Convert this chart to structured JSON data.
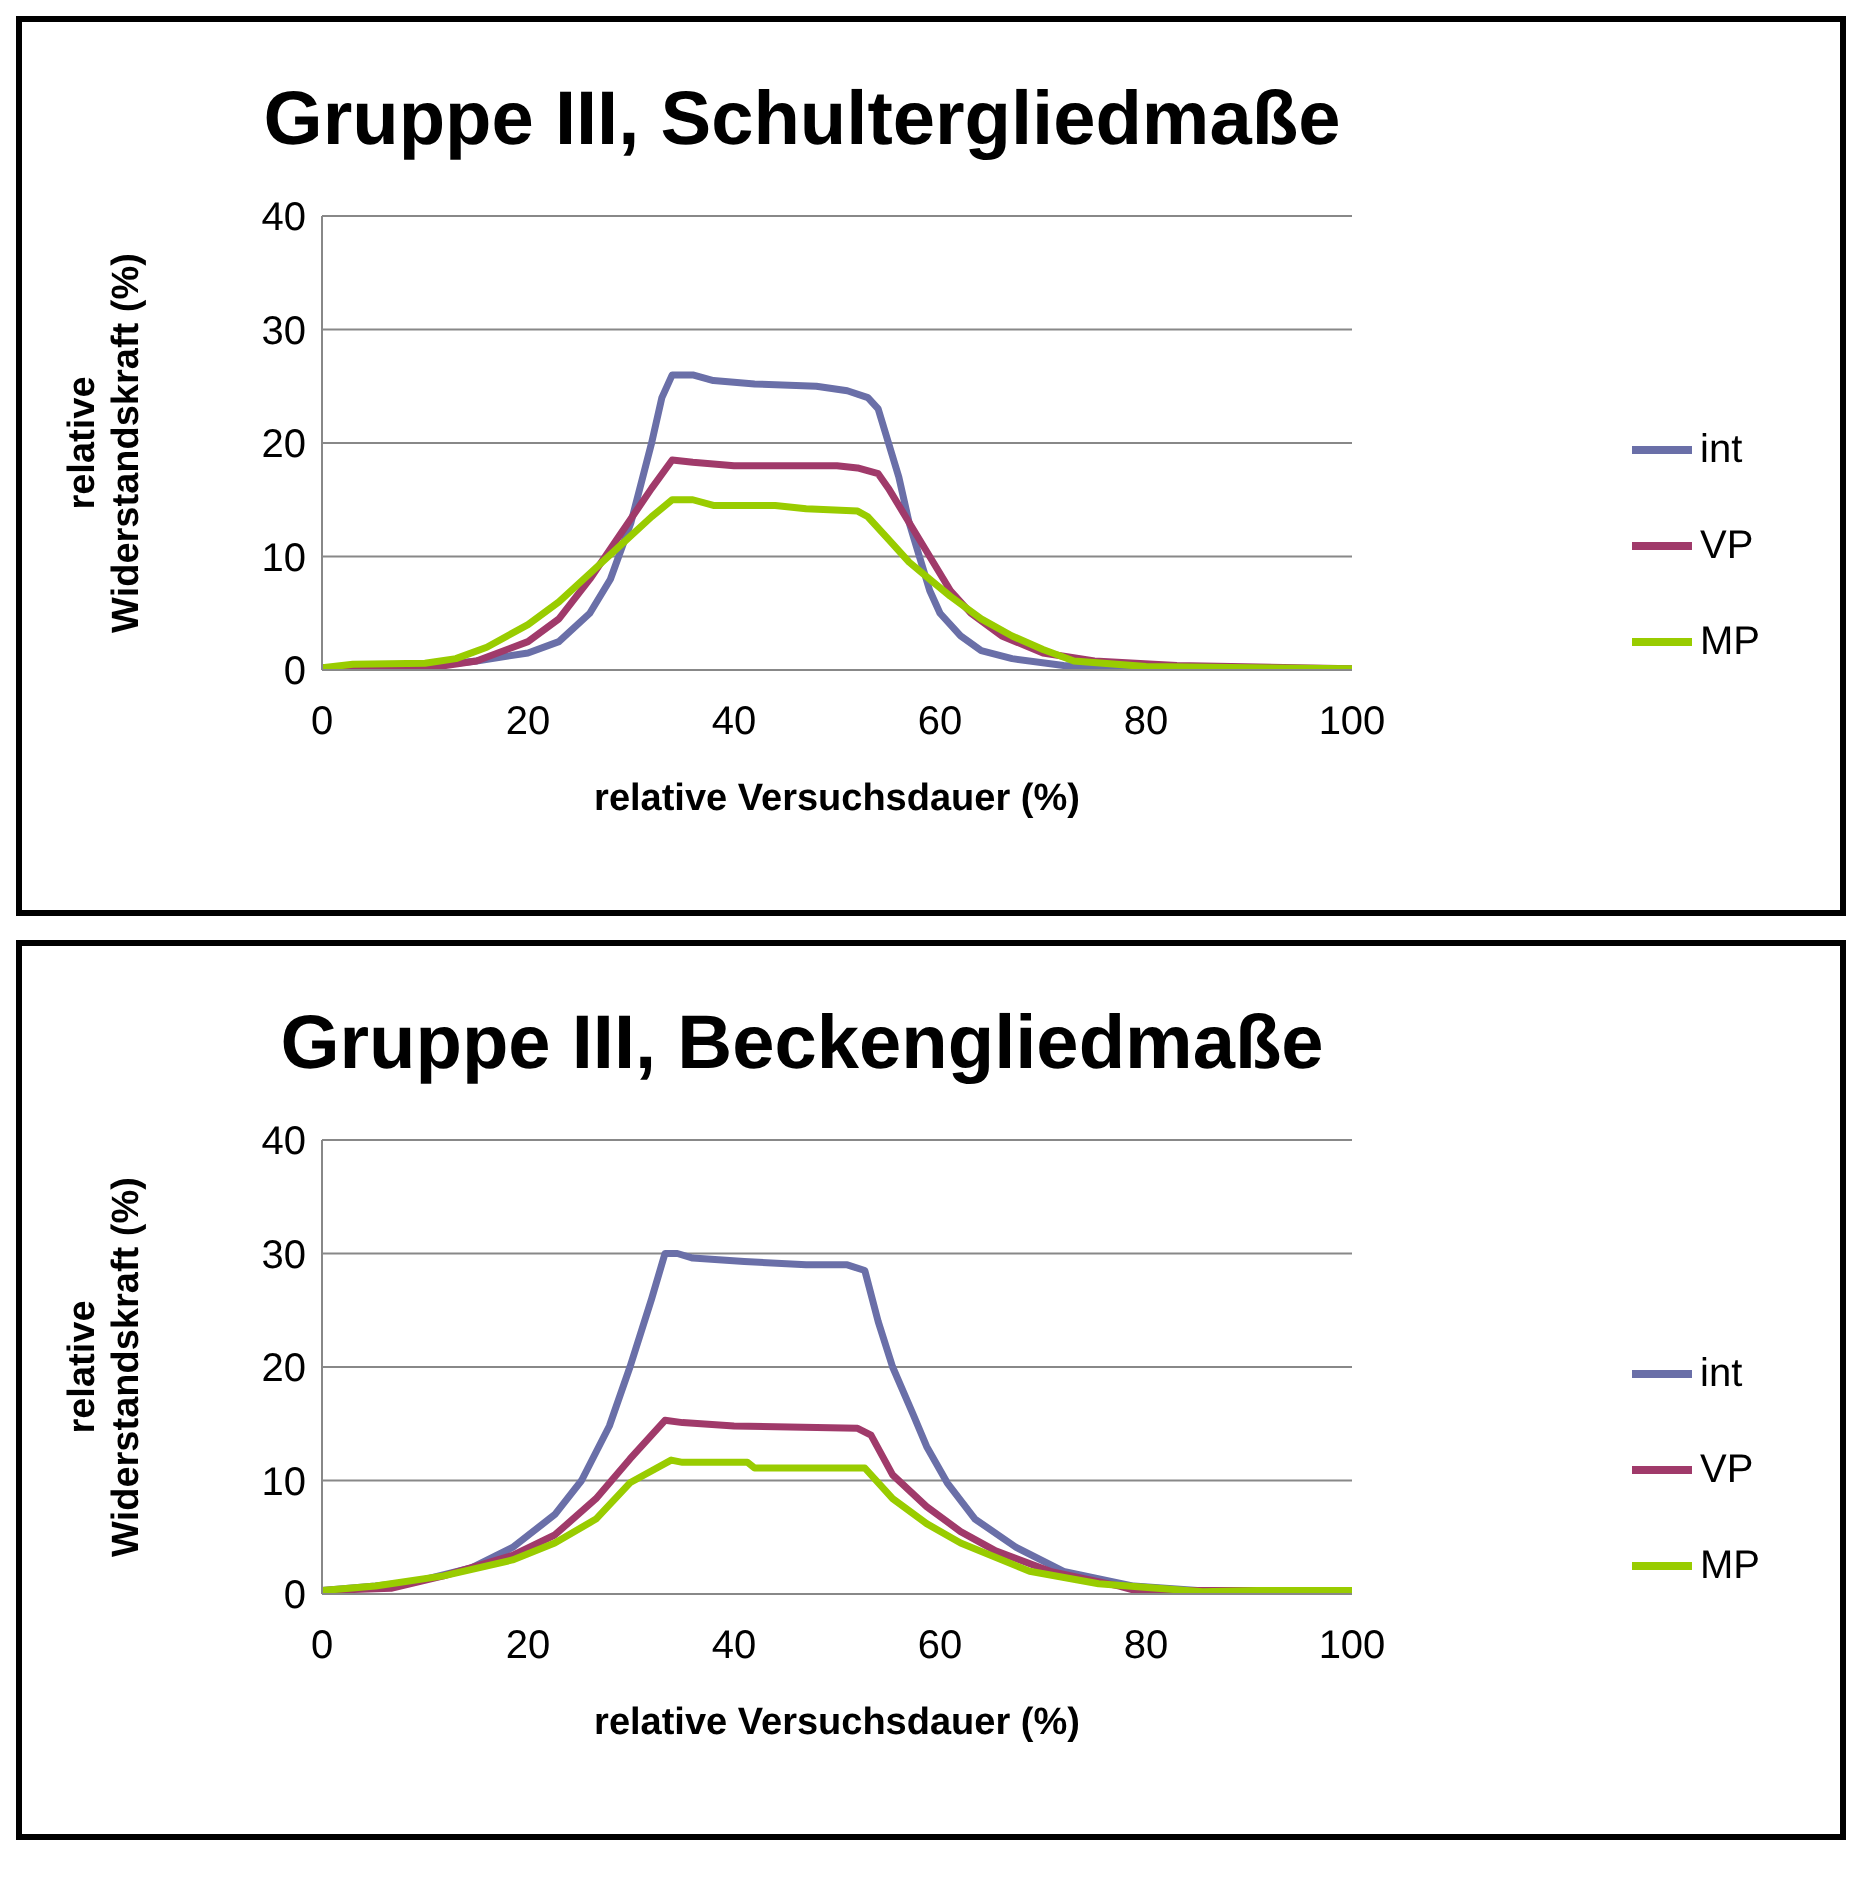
{
  "chart_data": [
    {
      "type": "line",
      "title": "Gruppe III, Schultergliedmaße",
      "xlabel": "relative Versuchsdauer (%)",
      "ylabel": "relative Widerstandskraft (%)",
      "xlim": [
        0,
        100
      ],
      "xticks": [
        0,
        20,
        40,
        60,
        80,
        100
      ],
      "ylim": [
        0,
        40
      ],
      "yticks": [
        0,
        10,
        20,
        30,
        40
      ],
      "grid": "y",
      "legend": "right",
      "marker": "none",
      "series": [
        {
          "name": "int",
          "color": "#6a6fa8",
          "x": [
            0,
            10,
            15,
            20,
            23,
            26,
            28,
            30,
            32,
            33,
            34,
            36,
            38,
            42,
            48,
            51,
            53,
            54,
            55,
            56,
            57,
            58,
            59,
            60,
            62,
            64,
            67,
            72,
            80,
            100
          ],
          "values": [
            0.2,
            0.3,
            0.8,
            1.5,
            2.5,
            5,
            8,
            13,
            20,
            24,
            26,
            26,
            25.5,
            25.2,
            25,
            24.6,
            24,
            23,
            20,
            17,
            13,
            10,
            7,
            5,
            3,
            1.7,
            1,
            0.4,
            0.2,
            0
          ]
        },
        {
          "name": "VP",
          "color": "#a03a6a",
          "x": [
            0,
            10,
            12,
            15,
            20,
            23,
            26,
            29,
            32,
            34,
            36,
            40,
            50,
            52,
            54,
            55,
            57,
            59,
            61,
            63,
            66,
            70,
            75,
            83,
            100
          ],
          "values": [
            0.2,
            0.2,
            0.4,
            0.8,
            2.5,
            4.5,
            8,
            12,
            16,
            18.5,
            18.3,
            18,
            18,
            17.8,
            17.3,
            16,
            13,
            10,
            7,
            5,
            3,
            1.5,
            0.8,
            0.4,
            0.1
          ]
        },
        {
          "name": "MP",
          "color": "#99cc00",
          "x": [
            0,
            3,
            10,
            13,
            16,
            20,
            23,
            26,
            29,
            32,
            34,
            36,
            38,
            44,
            47,
            52,
            53,
            55,
            57,
            59,
            61,
            64,
            67,
            70,
            73,
            80,
            100
          ],
          "values": [
            0.2,
            0.5,
            0.6,
            1,
            2,
            4,
            6,
            8.5,
            11,
            13.5,
            15,
            15,
            14.5,
            14.5,
            14.2,
            14,
            13.5,
            11.5,
            9.5,
            8,
            6.5,
            4.5,
            3,
            1.8,
            0.8,
            0.3,
            0.1
          ]
        }
      ]
    },
    {
      "type": "line",
      "title": "Gruppe III, Beckengliedmaße",
      "xlabel": "relative Versuchsdauer (%)",
      "ylabel": "relative Widerstandskraft (%)",
      "xlim": [
        0,
        100
      ],
      "xticks": [
        0,
        20,
        40,
        60,
        80,
        100
      ],
      "ylim": [
        0,
        40
      ],
      "yticks": [
        0,
        10,
        20,
        30,
        40
      ],
      "grid": "y",
      "legend": "right",
      "marker": "none",
      "series": [
        {
          "name": "int",
          "color": "#6a6fa8",
          "x": [
            0,
            5.2,
            9.2,
            14.5,
            18.5,
            22.6,
            25.2,
            27.9,
            29.9,
            32,
            33.3,
            34.5,
            36,
            41,
            47,
            51,
            52.7,
            54,
            55.4,
            57.4,
            58.7,
            60.7,
            63.4,
            67.4,
            72,
            78.8,
            85,
            100
          ],
          "values": [
            0.3,
            0.7,
            1.1,
            2.3,
            4.1,
            7,
            10,
            14.8,
            20,
            26,
            30,
            30,
            29.6,
            29.3,
            29,
            29,
            28.5,
            24,
            20,
            15.8,
            13,
            9.8,
            6.6,
            4.1,
            2,
            0.7,
            0.3,
            0.3
          ]
        },
        {
          "name": "VP",
          "color": "#a03a6a",
          "x": [
            0,
            6.7,
            11.8,
            18.5,
            22.6,
            26.6,
            29.9,
            33.3,
            35,
            40,
            52,
            53.3,
            55.4,
            58.7,
            62,
            65.4,
            70.7,
            77.4,
            79,
            100
          ],
          "values": [
            0.3,
            0.5,
            1.6,
            3.4,
            5.2,
            8.4,
            11.9,
            15.3,
            15.1,
            14.8,
            14.6,
            14,
            10.5,
            7.7,
            5.5,
            3.8,
            2,
            0.7,
            0.3,
            0.3
          ]
        },
        {
          "name": "MP",
          "color": "#99cc00",
          "x": [
            0,
            5.2,
            11.8,
            18.5,
            22.6,
            26.6,
            29.9,
            33.9,
            35,
            41.3,
            42,
            52.7,
            55.4,
            58.7,
            62,
            68.7,
            75.4,
            85.5,
            90.8,
            100
          ],
          "values": [
            0.3,
            0.7,
            1.6,
            3,
            4.5,
            6.6,
            9.8,
            11.8,
            11.6,
            11.6,
            11.1,
            11.1,
            8.4,
            6.2,
            4.5,
            2,
            0.9,
            0.2,
            0.3,
            0.3
          ]
        }
      ]
    }
  ]
}
